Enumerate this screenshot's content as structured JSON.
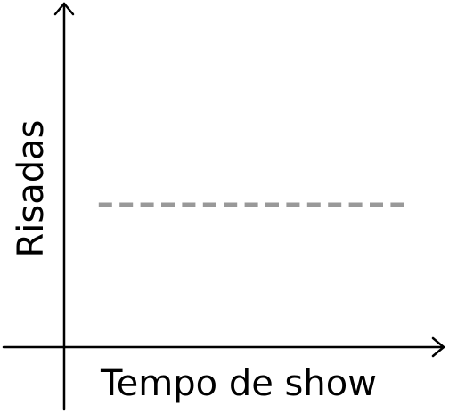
{
  "chart_data": {
    "type": "line",
    "title": "",
    "xlabel": "Tempo de show",
    "ylabel": "Risadas",
    "xlim": [
      0,
      1
    ],
    "ylim": [
      0,
      1
    ],
    "grid": false,
    "legend": "none",
    "series": [
      {
        "x": [
          0.1,
          1.0
        ],
        "values": [
          0.5,
          0.5
        ],
        "style": "dashed",
        "color": "#999999"
      }
    ]
  }
}
